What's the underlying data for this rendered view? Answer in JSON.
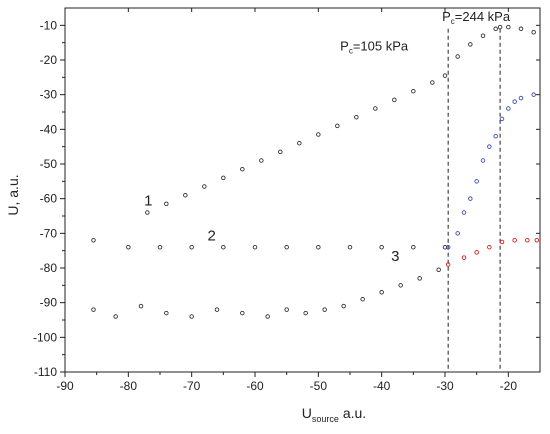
{
  "chart_data": {
    "type": "scatter",
    "title": "",
    "xlabel_main": "U",
    "xlabel_sub": "source",
    "xlabel_unit": " a.u.",
    "ylabel": "U, a.u.",
    "xlim": [
      -90,
      -15
    ],
    "ylim": [
      -110,
      -5
    ],
    "x_ticks": [
      -90,
      -80,
      -70,
      -60,
      -50,
      -40,
      -30,
      -20
    ],
    "y_ticks": [
      -110,
      -100,
      -90,
      -80,
      -70,
      -60,
      -50,
      -40,
      -30,
      -20,
      -10
    ],
    "grid": false,
    "marker_color": "#333333",
    "highlight_colors": {
      "blue": "#3a4fb0",
      "red": "#d02020"
    },
    "reference_lines": [
      {
        "x": -29.5,
        "style": "dashed"
      },
      {
        "x": -21.3,
        "style": "dashed"
      }
    ],
    "annotations": [
      {
        "label_main": "P",
        "label_sub": "c",
        "label_rest": "=244 kPa",
        "x": -21.3,
        "y": -10.5
      },
      {
        "label_main": "P",
        "label_sub": "c",
        "label_rest": "=105 kPa",
        "x": -29.5,
        "y": -19
      }
    ],
    "curve_labels": [
      {
        "text": "1",
        "x": -77.5,
        "y": -62
      },
      {
        "text": "2",
        "x": -67.5,
        "y": -72
      },
      {
        "text": "3",
        "x": -38.5,
        "y": -78
      }
    ],
    "series": [
      {
        "id": "curve-1",
        "color": "dark",
        "points": [
          [
            -77,
            -64
          ],
          [
            -74,
            -61.5
          ],
          [
            -71,
            -59
          ],
          [
            -68,
            -56.5
          ],
          [
            -65,
            -54
          ],
          [
            -62,
            -51.5
          ],
          [
            -59,
            -49
          ],
          [
            -56,
            -46.5
          ],
          [
            -53,
            -44
          ],
          [
            -50,
            -41.5
          ],
          [
            -47,
            -39
          ],
          [
            -44,
            -36.5
          ],
          [
            -41,
            -34
          ],
          [
            -38,
            -31.5
          ],
          [
            -35,
            -29
          ],
          [
            -32,
            -26.5
          ],
          [
            -30,
            -24.5
          ],
          [
            -28,
            -19
          ],
          [
            -26,
            -15.5
          ],
          [
            -24,
            -13
          ],
          [
            -22,
            -11
          ],
          [
            -21.3,
            -10.5
          ],
          [
            -20,
            -10.5
          ],
          [
            -18,
            -11
          ],
          [
            -16,
            -12
          ]
        ]
      },
      {
        "id": "curve-2",
        "color": "dark",
        "points": [
          [
            -85.5,
            -72
          ],
          [
            -80,
            -74
          ],
          [
            -75,
            -74
          ],
          [
            -70,
            -74
          ],
          [
            -65,
            -74
          ],
          [
            -60,
            -74
          ],
          [
            -55,
            -74
          ],
          [
            -50,
            -74
          ],
          [
            -45,
            -74
          ],
          [
            -40,
            -74
          ],
          [
            -35,
            -74
          ],
          [
            -30,
            -74
          ],
          [
            -29.5,
            -74
          ],
          [
            -28,
            -70
          ],
          [
            -27,
            -64
          ],
          [
            -26,
            -60
          ],
          [
            -25,
            -55
          ],
          [
            -24,
            -49
          ],
          [
            -23,
            -45
          ],
          [
            -22,
            -42
          ],
          [
            -21,
            -37
          ],
          [
            -20,
            -34
          ],
          [
            -19,
            -32
          ],
          [
            -18,
            -31
          ],
          [
            -16,
            -30
          ]
        ]
      },
      {
        "id": "curve-3",
        "color": "dark",
        "points": [
          [
            -85.5,
            -92
          ],
          [
            -82,
            -94
          ],
          [
            -78,
            -91
          ],
          [
            -74,
            -93
          ],
          [
            -70,
            -94
          ],
          [
            -66,
            -92
          ],
          [
            -62,
            -93
          ],
          [
            -58,
            -94
          ],
          [
            -55,
            -92
          ],
          [
            -52,
            -93
          ],
          [
            -49,
            -92
          ],
          [
            -46,
            -91
          ],
          [
            -43,
            -89
          ],
          [
            -40,
            -87
          ],
          [
            -37,
            -85
          ],
          [
            -34,
            -83
          ],
          [
            -31,
            -80.5
          ],
          [
            -29.5,
            -79
          ],
          [
            -27,
            -77
          ],
          [
            -25,
            -75.5
          ],
          [
            -23,
            -74
          ],
          [
            -21,
            -72.5
          ],
          [
            -19,
            -72
          ],
          [
            -17,
            -72
          ],
          [
            -15.5,
            -72
          ]
        ]
      }
    ]
  }
}
